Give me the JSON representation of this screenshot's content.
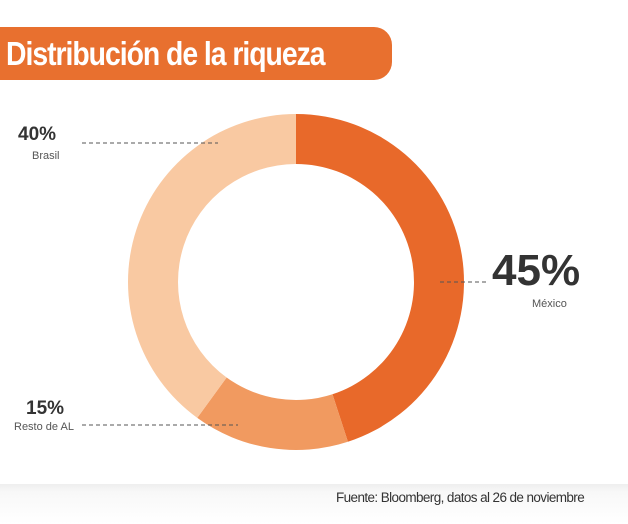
{
  "chart_data": {
    "type": "pie",
    "title": "Distribución de la riqueza",
    "donut": true,
    "slices": [
      {
        "label": "México",
        "value": 45,
        "display": "45%",
        "color": "#e8692a"
      },
      {
        "label": "Resto de AL",
        "value": 15,
        "display": "15%",
        "color": "#f19a60"
      },
      {
        "label": "Brasil",
        "value": 40,
        "display": "40%",
        "color": "#f9c9a2"
      }
    ],
    "source": "Fuente: Bloomberg, datos al 26 de noviembre"
  }
}
